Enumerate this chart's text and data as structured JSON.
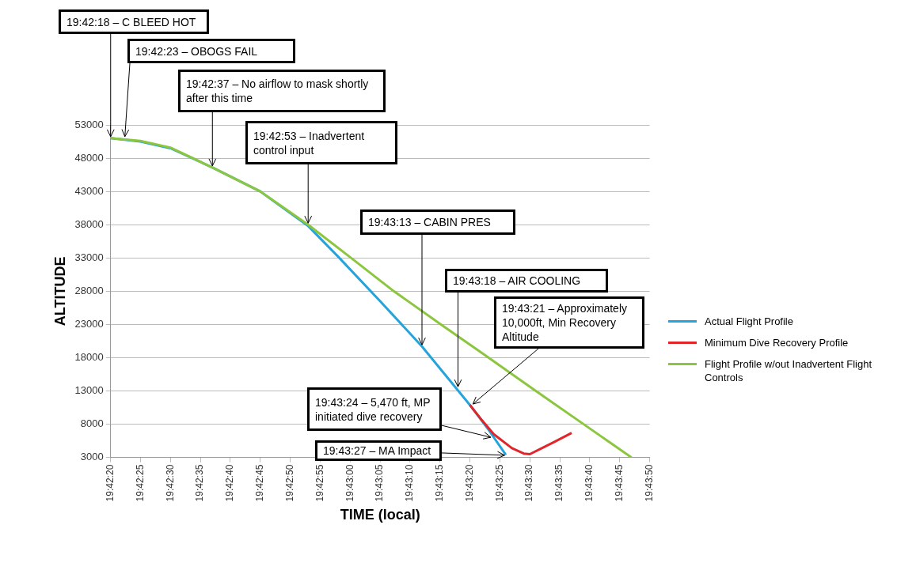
{
  "chart_data": {
    "type": "line",
    "xlabel": "TIME (local)",
    "ylabel": "ALTITUDE",
    "xlim": [
      19.70556,
      19.73056
    ],
    "ylim": [
      3000,
      53000
    ],
    "xticks": [
      {
        "value": 19.70556,
        "label": "19:42:20"
      },
      {
        "value": 19.70694,
        "label": "19:42:25"
      },
      {
        "value": 19.70833,
        "label": "19:42:30"
      },
      {
        "value": 19.70972,
        "label": "19:42:35"
      },
      {
        "value": 19.71111,
        "label": "19:42:40"
      },
      {
        "value": 19.7125,
        "label": "19:42:45"
      },
      {
        "value": 19.71389,
        "label": "19:42:50"
      },
      {
        "value": 19.71528,
        "label": "19:42:55"
      },
      {
        "value": 19.71667,
        "label": "19:43:00"
      },
      {
        "value": 19.71806,
        "label": "19:43:05"
      },
      {
        "value": 19.71944,
        "label": "19:43:10"
      },
      {
        "value": 19.72083,
        "label": "19:43:15"
      },
      {
        "value": 19.72222,
        "label": "19:43:20"
      },
      {
        "value": 19.72361,
        "label": "19:43:25"
      },
      {
        "value": 19.725,
        "label": "19:43:30"
      },
      {
        "value": 19.72639,
        "label": "19:43:35"
      },
      {
        "value": 19.72778,
        "label": "19:43:40"
      },
      {
        "value": 19.72917,
        "label": "19:43:45"
      },
      {
        "value": 19.73056,
        "label": "19:43:50"
      }
    ],
    "yticks": [
      3000,
      8000,
      13000,
      18000,
      23000,
      28000,
      33000,
      38000,
      43000,
      48000,
      53000
    ],
    "grid": "y",
    "legend": "right",
    "marker": "none",
    "series": [
      {
        "name": "Actual Flight Profile",
        "color": "#25a3dc",
        "x": [
          19.70556,
          19.70694,
          19.70833,
          19.71028,
          19.7125,
          19.71472,
          19.71611,
          19.71806,
          19.72,
          19.72222,
          19.72306,
          19.72389
        ],
        "values": [
          51000,
          50500,
          49500,
          46600,
          43000,
          37800,
          33200,
          26500,
          19700,
          10900,
          7300,
          3400
        ]
      },
      {
        "name": "Minimum Dive Recovery Profile",
        "color": "#e0262b",
        "x": [
          19.72222,
          19.72278,
          19.72333,
          19.72417,
          19.72472,
          19.725,
          19.72556,
          19.72611,
          19.72694
        ],
        "values": [
          10900,
          8600,
          6500,
          4400,
          3600,
          3500,
          4400,
          5300,
          6700
        ]
      },
      {
        "name": "Flight Profile w/out Inadvertent Flight Controls",
        "color": "#8cc63f",
        "x": [
          19.70556,
          19.70694,
          19.70833,
          19.71028,
          19.7125,
          19.71472,
          19.71667,
          19.71861,
          19.72083,
          19.72278,
          19.72528,
          19.7275,
          19.72972
        ],
        "values": [
          51000,
          50600,
          49600,
          46600,
          43000,
          38000,
          33100,
          28200,
          23100,
          18700,
          13000,
          8000,
          3000
        ]
      }
    ],
    "annotations": [
      {
        "text": "19:42:18 – C BLEED HOT",
        "x": 19.70556,
        "y": 51000
      },
      {
        "text": "19:42:23 – OBOGS FAIL",
        "x": 19.70622,
        "y": 51000
      },
      {
        "text": "19:42:37 – No airflow to mask shortly after this time",
        "x": 19.71028,
        "y": 46600
      },
      {
        "text": "19:42:53 – Inadvertent control input",
        "x": 19.71472,
        "y": 38000
      },
      {
        "text": "19:43:13 – CABIN PRES",
        "x": 19.72,
        "y": 19700
      },
      {
        "text": "19:43:18 – AIR COOLING",
        "x": 19.72167,
        "y": 13400
      },
      {
        "text": "19:43:21 – Approximately 10,000ft, Min Recovery Altitude",
        "x": 19.72236,
        "y": 10800
      },
      {
        "text": "19:43:24 – 5,470 ft, MP initiated dive recovery",
        "x": 19.72319,
        "y": 5800
      },
      {
        "text": "19:43:27 – MA Impact",
        "x": 19.72383,
        "y": 3100
      }
    ]
  }
}
